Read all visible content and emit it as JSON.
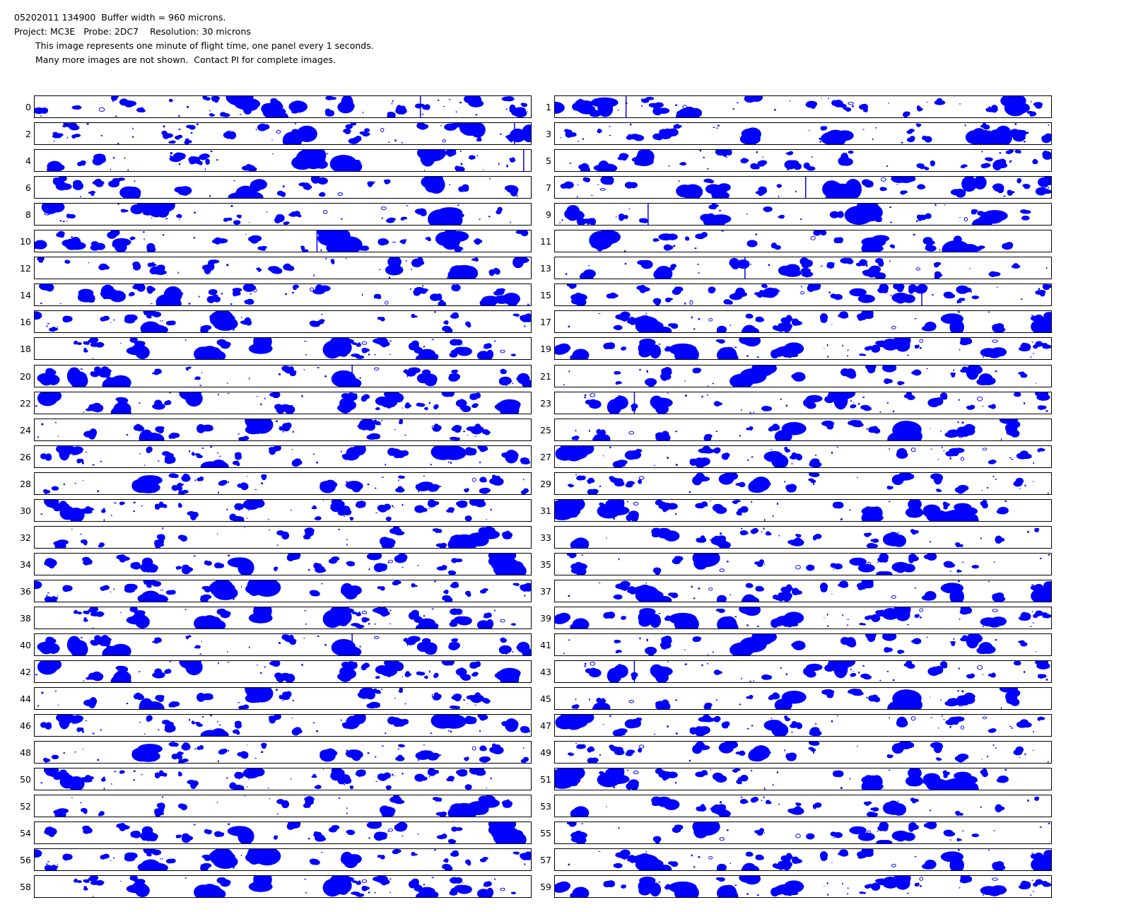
{
  "header": {
    "line1": "05202011 134900  Buffer width = 960 microns.",
    "line2": "Project: MC3E   Probe: 2DC7    Resolution: 30 microns",
    "line3": "This image represents one minute of flight time, one panel every 1 seconds.",
    "line4": "Many more images are not shown.  Contact PI for complete images."
  },
  "colors": {
    "particle": "#0000ff",
    "background": "#ffffff",
    "border": "#000000"
  },
  "panels": [
    {
      "label": "0"
    },
    {
      "label": "1"
    },
    {
      "label": "2"
    },
    {
      "label": "3"
    },
    {
      "label": "4"
    },
    {
      "label": "5"
    },
    {
      "label": "6"
    },
    {
      "label": "7"
    },
    {
      "label": "8"
    },
    {
      "label": "9"
    },
    {
      "label": "10"
    },
    {
      "label": "11"
    },
    {
      "label": "12"
    },
    {
      "label": "13"
    },
    {
      "label": "14"
    },
    {
      "label": "15"
    },
    {
      "label": "16"
    },
    {
      "label": "17"
    },
    {
      "label": "18"
    },
    {
      "label": "19"
    },
    {
      "label": "20"
    },
    {
      "label": "21"
    },
    {
      "label": "22"
    },
    {
      "label": "23"
    },
    {
      "label": "24"
    },
    {
      "label": "25"
    },
    {
      "label": "26"
    },
    {
      "label": "27"
    },
    {
      "label": "28"
    },
    {
      "label": "29"
    },
    {
      "label": "30"
    },
    {
      "label": "31"
    },
    {
      "label": "32"
    },
    {
      "label": "33"
    },
    {
      "label": "34"
    },
    {
      "label": "35"
    },
    {
      "label": "36"
    },
    {
      "label": "37"
    },
    {
      "label": "38"
    },
    {
      "label": "39"
    },
    {
      "label": "40"
    },
    {
      "label": "41"
    },
    {
      "label": "42"
    },
    {
      "label": "43"
    },
    {
      "label": "44"
    },
    {
      "label": "45"
    },
    {
      "label": "46"
    },
    {
      "label": "47"
    },
    {
      "label": "48"
    },
    {
      "label": "49"
    },
    {
      "label": "50"
    },
    {
      "label": "51"
    },
    {
      "label": "52"
    },
    {
      "label": "53"
    },
    {
      "label": "54"
    },
    {
      "label": "55"
    },
    {
      "label": "56"
    },
    {
      "label": "57"
    },
    {
      "label": "58"
    },
    {
      "label": "59"
    }
  ]
}
